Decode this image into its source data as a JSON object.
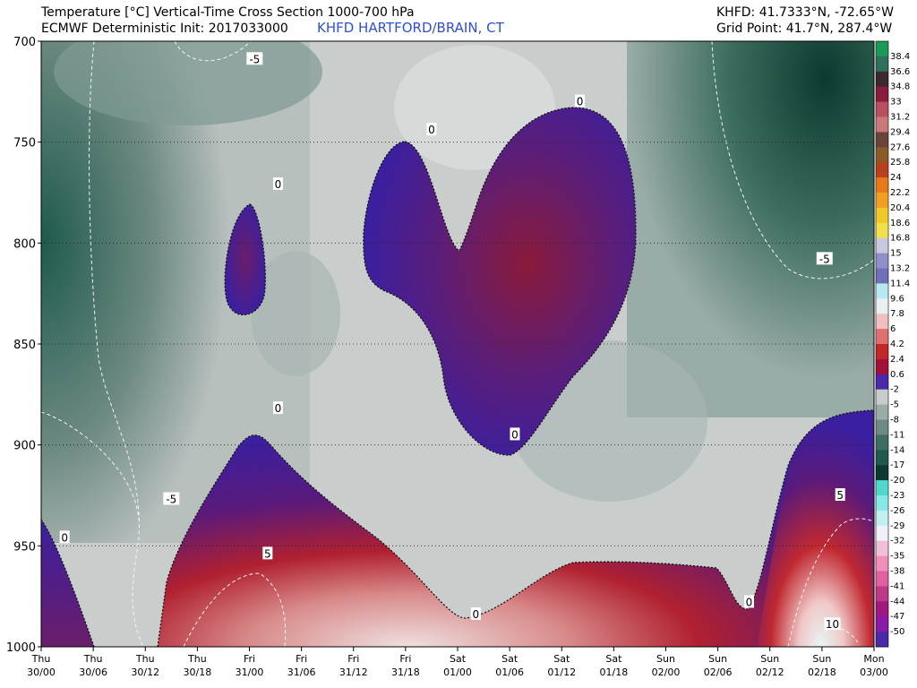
{
  "header": {
    "title": "Temperature [°C] Vertical-Time Cross Section 1000-700 hPa",
    "model": "ECMWF Deterministic Init: 2017033000",
    "station": "KHFD HARTFORD/BRAIN, CT",
    "coords": "KHFD: 41.7333°N, -72.65°W",
    "grid": "Grid Point: 41.7°N, 287.4°W"
  },
  "colors": {
    "warm_low": "#3a1fa0",
    "warm_mid": "#8a1a3a",
    "warm_high": "#d8a8a8",
    "cold_light": "#c8cccb",
    "cold_mid": "#8fa39f",
    "cold_dark": "#1e5a4d"
  },
  "chart_data": {
    "type": "heatmap",
    "title": "Temperature [°C] Vertical-Time Cross Section 1000-700 hPa",
    "y_axis": {
      "ticks": [
        700,
        750,
        800,
        850,
        900,
        950,
        1000
      ],
      "range": [
        700,
        1000
      ],
      "inverted": true,
      "gridlines": [
        750,
        800,
        850,
        900,
        950
      ]
    },
    "x_axis": {
      "ticks": [
        {
          "day": "Thu",
          "time": "30/00"
        },
        {
          "day": "Thu",
          "time": "30/06"
        },
        {
          "day": "Thu",
          "time": "30/12"
        },
        {
          "day": "Thu",
          "time": "30/18"
        },
        {
          "day": "Fri",
          "time": "31/00"
        },
        {
          "day": "Fri",
          "time": "31/06"
        },
        {
          "day": "Fri",
          "time": "31/12"
        },
        {
          "day": "Fri",
          "time": "31/18"
        },
        {
          "day": "Sat",
          "time": "01/00"
        },
        {
          "day": "Sat",
          "time": "01/06"
        },
        {
          "day": "Sat",
          "time": "01/12"
        },
        {
          "day": "Sat",
          "time": "01/18"
        },
        {
          "day": "Sun",
          "time": "02/00"
        },
        {
          "day": "Sun",
          "time": "02/06"
        },
        {
          "day": "Sun",
          "time": "02/12"
        },
        {
          "day": "Sun",
          "time": "02/18"
        },
        {
          "day": "Mon",
          "time": "03/00"
        }
      ]
    },
    "colorbar": {
      "ticks": [
        "38.4",
        "36.6",
        "34.8",
        "33",
        "31.2",
        "29.4",
        "27.6",
        "25.8",
        "24",
        "22.2",
        "20.4",
        "18.6",
        "16.8",
        "15",
        "13.2",
        "11.4",
        "9.6",
        "7.8",
        "6",
        "4.2",
        "2.4",
        "0.6",
        "-2",
        "-5",
        "-8",
        "-11",
        "-14",
        "-17",
        "-20",
        "-23",
        "-26",
        "-29",
        "-32",
        "-35",
        "-38",
        "-41",
        "-44",
        "-47",
        "-50"
      ],
      "colors": [
        "#1a9a55",
        "#2e6f5d",
        "#3a2a30",
        "#8a1c3c",
        "#b85060",
        "#c97a78",
        "#6a4438",
        "#8a5a28",
        "#b8421e",
        "#e87818",
        "#f0a020",
        "#f0c828",
        "#f0e04a",
        "#c8c8e0",
        "#9090c8",
        "#7070b8",
        "#b8e8f0",
        "#e8f0f0",
        "#f0c0c0",
        "#e07070",
        "#c02828",
        "#a0103a",
        "#4a2aa8",
        "#c8cccb",
        "#9aaca8",
        "#6e8a84",
        "#3e6e62",
        "#1e5a4d",
        "#0c3a30",
        "#50d8d0",
        "#88e8e8",
        "#c0f0f0",
        "#f0f0f8",
        "#f0c0d8",
        "#f090b8",
        "#e060a0",
        "#c03888",
        "#a01880",
        "#8a1aa8",
        "#4a2aa8"
      ]
    },
    "contours": [
      {
        "value": 0,
        "label": "0"
      },
      {
        "value": -5,
        "label": "-5"
      },
      {
        "value": 5,
        "label": "5"
      },
      {
        "value": 10,
        "label": "10"
      }
    ],
    "contour_labels": [
      {
        "text": "-5",
        "t": 4.1,
        "p": 709
      },
      {
        "text": "0",
        "t": 4.55,
        "p": 771
      },
      {
        "text": "0",
        "t": 7.5,
        "p": 744
      },
      {
        "text": "0",
        "t": 10.35,
        "p": 730
      },
      {
        "text": "0",
        "t": 9.1,
        "p": 895
      },
      {
        "text": "0",
        "t": 4.55,
        "p": 882
      },
      {
        "text": "0",
        "t": 0.45,
        "p": 946
      },
      {
        "text": "-5",
        "t": 2.5,
        "p": 927
      },
      {
        "text": "5",
        "t": 4.35,
        "p": 954
      },
      {
        "text": "0",
        "t": 8.35,
        "p": 984
      },
      {
        "text": "0",
        "t": 13.6,
        "p": 978
      },
      {
        "text": "-5",
        "t": 15.05,
        "p": 808
      },
      {
        "text": "5",
        "t": 15.35,
        "p": 925
      },
      {
        "text": "10",
        "t": 15.2,
        "p": 989
      }
    ]
  }
}
